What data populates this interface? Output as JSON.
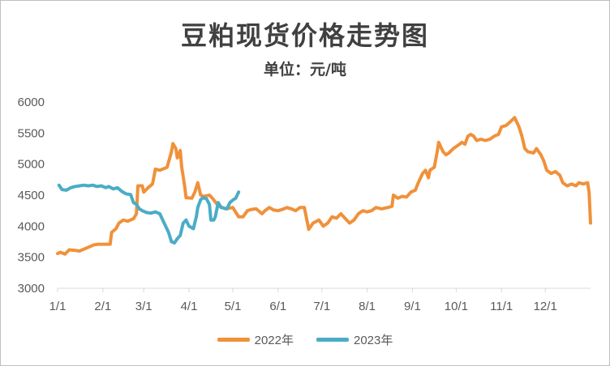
{
  "title": "豆粕现货价格走势图",
  "subtitle": "单位：元/吨",
  "chart_data": {
    "type": "line",
    "x_domain": [
      0,
      365
    ],
    "ylim": [
      3000,
      6000
    ],
    "yticks": [
      3000,
      3500,
      4000,
      4500,
      5000,
      5500,
      6000
    ],
    "xticks": [
      {
        "label": "1/1",
        "day": 0
      },
      {
        "label": "2/1",
        "day": 31
      },
      {
        "label": "3/1",
        "day": 59
      },
      {
        "label": "4/1",
        "day": 90
      },
      {
        "label": "5/1",
        "day": 120
      },
      {
        "label": "6/1",
        "day": 151
      },
      {
        "label": "7/1",
        "day": 181
      },
      {
        "label": "8/1",
        "day": 212
      },
      {
        "label": "9/1",
        "day": 243
      },
      {
        "label": "10/1",
        "day": 273
      },
      {
        "label": "11/1",
        "day": 304
      },
      {
        "label": "12/1",
        "day": 334
      }
    ],
    "grid": false,
    "legend_position": "bottom",
    "series": [
      {
        "name": "2022年",
        "color": "#F0913A",
        "points": [
          [
            0,
            3560
          ],
          [
            2,
            3580
          ],
          [
            5,
            3550
          ],
          [
            8,
            3620
          ],
          [
            12,
            3610
          ],
          [
            15,
            3600
          ],
          [
            20,
            3650
          ],
          [
            25,
            3700
          ],
          [
            28,
            3710
          ],
          [
            36,
            3710
          ],
          [
            37,
            3900
          ],
          [
            40,
            3960
          ],
          [
            42,
            4050
          ],
          [
            45,
            4100
          ],
          [
            48,
            4080
          ],
          [
            52,
            4120
          ],
          [
            54,
            4200
          ],
          [
            55,
            4650
          ],
          [
            58,
            4650
          ],
          [
            59,
            4550
          ],
          [
            62,
            4620
          ],
          [
            65,
            4680
          ],
          [
            67,
            4920
          ],
          [
            70,
            4900
          ],
          [
            72,
            4920
          ],
          [
            75,
            4950
          ],
          [
            78,
            5200
          ],
          [
            79,
            5330
          ],
          [
            81,
            5250
          ],
          [
            82,
            5100
          ],
          [
            84,
            5220
          ],
          [
            85,
            4950
          ],
          [
            87,
            4650
          ],
          [
            88,
            4460
          ],
          [
            92,
            4450
          ],
          [
            94,
            4550
          ],
          [
            96,
            4700
          ],
          [
            98,
            4500
          ],
          [
            100,
            4480
          ],
          [
            104,
            4500
          ],
          [
            106,
            4450
          ],
          [
            110,
            4330
          ],
          [
            115,
            4280
          ],
          [
            120,
            4300
          ],
          [
            124,
            4150
          ],
          [
            127,
            4150
          ],
          [
            130,
            4250
          ],
          [
            133,
            4270
          ],
          [
            136,
            4280
          ],
          [
            140,
            4200
          ],
          [
            142,
            4250
          ],
          [
            145,
            4300
          ],
          [
            148,
            4260
          ],
          [
            151,
            4250
          ],
          [
            154,
            4270
          ],
          [
            157,
            4300
          ],
          [
            160,
            4280
          ],
          [
            163,
            4250
          ],
          [
            166,
            4300
          ],
          [
            169,
            4300
          ],
          [
            172,
            3950
          ],
          [
            175,
            4050
          ],
          [
            179,
            4100
          ],
          [
            182,
            4000
          ],
          [
            185,
            4050
          ],
          [
            188,
            4150
          ],
          [
            191,
            4130
          ],
          [
            194,
            4200
          ],
          [
            198,
            4100
          ],
          [
            200,
            4050
          ],
          [
            203,
            4100
          ],
          [
            206,
            4200
          ],
          [
            209,
            4250
          ],
          [
            212,
            4230
          ],
          [
            215,
            4250
          ],
          [
            218,
            4300
          ],
          [
            222,
            4280
          ],
          [
            226,
            4300
          ],
          [
            229,
            4320
          ],
          [
            230,
            4500
          ],
          [
            233,
            4450
          ],
          [
            236,
            4480
          ],
          [
            239,
            4470
          ],
          [
            242,
            4550
          ],
          [
            245,
            4580
          ],
          [
            247,
            4700
          ],
          [
            250,
            4850
          ],
          [
            252,
            4900
          ],
          [
            254,
            4780
          ],
          [
            255,
            4900
          ],
          [
            258,
            4950
          ],
          [
            260,
            5200
          ],
          [
            261,
            5350
          ],
          [
            264,
            5200
          ],
          [
            266,
            5150
          ],
          [
            268,
            5180
          ],
          [
            271,
            5250
          ],
          [
            274,
            5300
          ],
          [
            277,
            5350
          ],
          [
            279,
            5320
          ],
          [
            281,
            5450
          ],
          [
            283,
            5480
          ],
          [
            285,
            5450
          ],
          [
            287,
            5380
          ],
          [
            290,
            5400
          ],
          [
            293,
            5380
          ],
          [
            296,
            5400
          ],
          [
            299,
            5450
          ],
          [
            302,
            5480
          ],
          [
            304,
            5600
          ],
          [
            307,
            5620
          ],
          [
            310,
            5680
          ],
          [
            313,
            5750
          ],
          [
            316,
            5600
          ],
          [
            318,
            5450
          ],
          [
            320,
            5250
          ],
          [
            322,
            5200
          ],
          [
            326,
            5180
          ],
          [
            328,
            5250
          ],
          [
            331,
            5150
          ],
          [
            333,
            5050
          ],
          [
            335,
            4900
          ],
          [
            338,
            4850
          ],
          [
            341,
            4880
          ],
          [
            344,
            4820
          ],
          [
            346,
            4700
          ],
          [
            349,
            4650
          ],
          [
            352,
            4680
          ],
          [
            355,
            4650
          ],
          [
            357,
            4700
          ],
          [
            360,
            4680
          ],
          [
            363,
            4700
          ],
          [
            364,
            4550
          ],
          [
            365,
            4050
          ]
        ]
      },
      {
        "name": "2023年",
        "color": "#4BACC6",
        "points": [
          [
            1,
            4660
          ],
          [
            3,
            4590
          ],
          [
            6,
            4580
          ],
          [
            9,
            4620
          ],
          [
            12,
            4640
          ],
          [
            15,
            4650
          ],
          [
            18,
            4660
          ],
          [
            21,
            4650
          ],
          [
            24,
            4660
          ],
          [
            27,
            4640
          ],
          [
            30,
            4650
          ],
          [
            33,
            4620
          ],
          [
            35,
            4640
          ],
          [
            38,
            4600
          ],
          [
            41,
            4620
          ],
          [
            44,
            4560
          ],
          [
            47,
            4520
          ],
          [
            50,
            4510
          ],
          [
            52,
            4380
          ],
          [
            54,
            4350
          ],
          [
            56,
            4280
          ],
          [
            58,
            4250
          ],
          [
            61,
            4220
          ],
          [
            64,
            4210
          ],
          [
            67,
            4230
          ],
          [
            70,
            4200
          ],
          [
            72,
            4100
          ],
          [
            74,
            4000
          ],
          [
            76,
            3900
          ],
          [
            78,
            3750
          ],
          [
            80,
            3730
          ],
          [
            82,
            3800
          ],
          [
            84,
            3850
          ],
          [
            86,
            4050
          ],
          [
            88,
            4100
          ],
          [
            90,
            4000
          ],
          [
            93,
            3960
          ],
          [
            95,
            4150
          ],
          [
            96,
            4300
          ],
          [
            98,
            4430
          ],
          [
            100,
            4460
          ],
          [
            102,
            4440
          ],
          [
            104,
            4350
          ],
          [
            105,
            4100
          ],
          [
            107,
            4100
          ],
          [
            108,
            4150
          ],
          [
            110,
            4380
          ],
          [
            112,
            4300
          ],
          [
            114,
            4290
          ],
          [
            116,
            4280
          ],
          [
            118,
            4380
          ],
          [
            120,
            4420
          ],
          [
            122,
            4450
          ],
          [
            124,
            4550
          ]
        ]
      }
    ]
  }
}
